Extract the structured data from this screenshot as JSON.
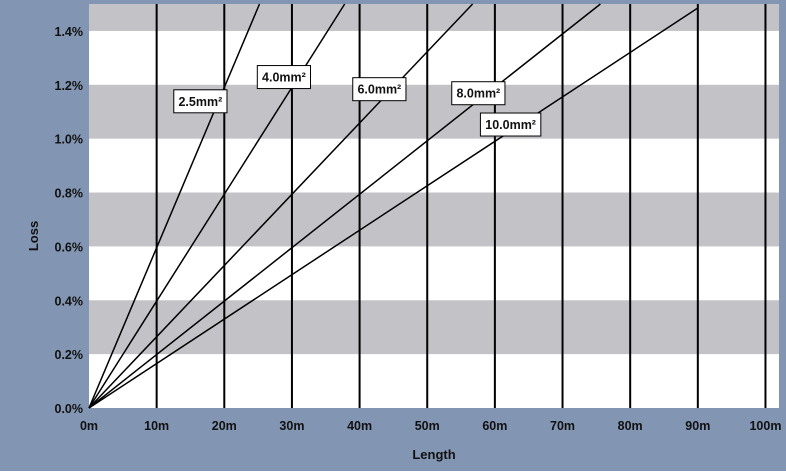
{
  "colors": {
    "frame_background": "#8295b2",
    "band_gray": "#c3c3c7",
    "band_white": "#ffffff",
    "grid_line": "#000000",
    "series_line": "#000000",
    "text": "#111111"
  },
  "chart_data": {
    "type": "line",
    "title": "",
    "xlabel": "Length",
    "ylabel": "Loss",
    "xlim": [
      0,
      102
    ],
    "ylim": [
      0,
      1.5
    ],
    "x_ticks": [
      {
        "value": 0,
        "label": "0m"
      },
      {
        "value": 10,
        "label": "10m"
      },
      {
        "value": 20,
        "label": "20m"
      },
      {
        "value": 30,
        "label": "30m"
      },
      {
        "value": 40,
        "label": "40m"
      },
      {
        "value": 50,
        "label": "50m"
      },
      {
        "value": 60,
        "label": "60m"
      },
      {
        "value": 70,
        "label": "70m"
      },
      {
        "value": 80,
        "label": "80m"
      },
      {
        "value": 90,
        "label": "90m"
      },
      {
        "value": 100,
        "label": "100m"
      }
    ],
    "y_ticks": [
      {
        "value": 0,
        "label": "0.0%"
      },
      {
        "value": 0.2,
        "label": "0.2%"
      },
      {
        "value": 0.4,
        "label": "0.4%"
      },
      {
        "value": 0.6,
        "label": "0.6%"
      },
      {
        "value": 0.8,
        "label": "0.8%"
      },
      {
        "value": 1.0,
        "label": "1.0%"
      },
      {
        "value": 1.2,
        "label": "1.2%"
      },
      {
        "value": 1.4,
        "label": "1.4%"
      }
    ],
    "grid": {
      "vertical_lines": true,
      "horizontal_bands": true
    },
    "series": [
      {
        "name": "2.5mm²",
        "x": [
          0,
          25.2
        ],
        "y": [
          0,
          1.5
        ]
      },
      {
        "name": "4.0mm²",
        "x": [
          0,
          37.8
        ],
        "y": [
          0,
          1.5
        ]
      },
      {
        "name": "6.0mm²",
        "x": [
          0,
          56.7
        ],
        "y": [
          0,
          1.5
        ]
      },
      {
        "name": "8.0mm²",
        "x": [
          0,
          75.6
        ],
        "y": [
          0,
          1.5
        ]
      },
      {
        "name": "10.0mm²",
        "x": [
          0,
          90
        ],
        "y": [
          0,
          1.485
        ]
      }
    ]
  }
}
